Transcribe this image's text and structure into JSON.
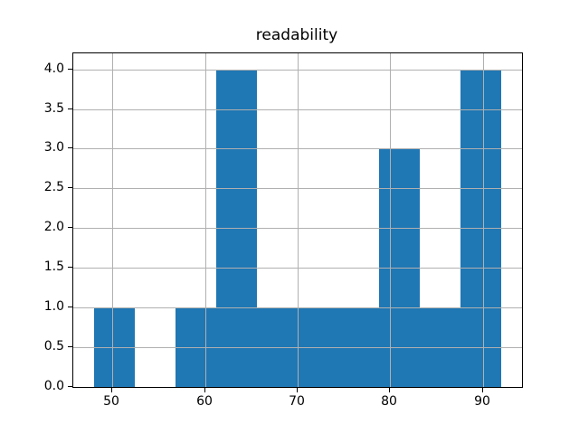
{
  "chart_data": {
    "type": "bar",
    "subtype": "histogram",
    "title": "readability",
    "xlabel": "",
    "ylabel": "",
    "bin_edges": [
      48,
      52.4,
      56.8,
      61.2,
      65.6,
      70,
      74.4,
      78.8,
      83.2,
      87.6,
      92
    ],
    "counts": [
      1,
      0,
      1,
      4,
      1,
      1,
      1,
      3,
      1,
      4
    ],
    "xlim": [
      45.8,
      94.2
    ],
    "ylim": [
      0,
      4.2
    ],
    "x_ticks": [
      50,
      60,
      70,
      80,
      90
    ],
    "y_ticks": [
      0.0,
      0.5,
      1.0,
      1.5,
      2.0,
      2.5,
      3.0,
      3.5,
      4.0
    ],
    "grid": true,
    "grid_over_bars": true,
    "legend": false,
    "bar_color": "#1f77b4",
    "grid_color": "#b0b0b0",
    "spine_color": "#000000",
    "background_color": "#ffffff"
  }
}
